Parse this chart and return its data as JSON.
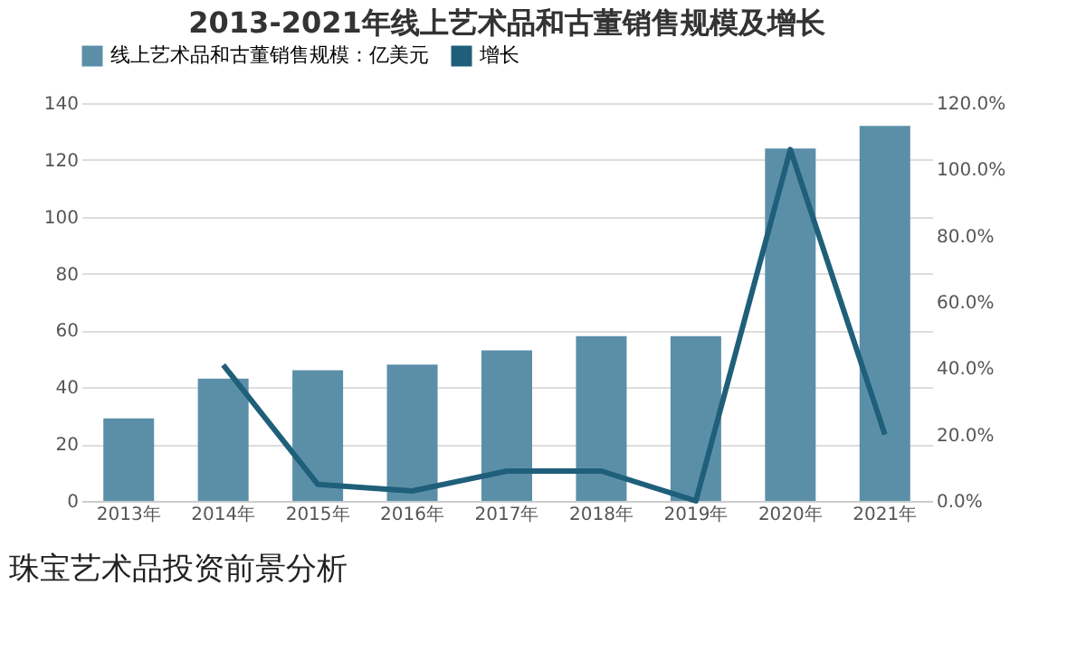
{
  "chart_data": {
    "type": "bar",
    "title": "2013-2021年线上艺术品和古董销售规模及增长",
    "categories": [
      "2013年",
      "2014年",
      "2015年",
      "2016年",
      "2017年",
      "2018年",
      "2019年",
      "2020年",
      "2021年"
    ],
    "series": [
      {
        "name": "线上艺术品和古董销售规模：亿美元",
        "color": "#5b8fa8",
        "values": [
          29,
          43,
          46,
          48,
          53,
          58,
          58,
          124,
          132
        ]
      },
      {
        "name": "增长",
        "type": "line",
        "axis": "y2",
        "color": "#1f5f7a",
        "values": [
          null,
          41,
          5,
          3,
          9,
          9,
          0,
          106,
          20
        ]
      }
    ],
    "ylim": [
      0,
      140
    ],
    "yticks": [
      0,
      20,
      40,
      60,
      80,
      100,
      120,
      140
    ],
    "y2lim": [
      0,
      120
    ],
    "y2ticks": [
      {
        "value": 0,
        "label": "0.0%"
      },
      {
        "value": 20,
        "label": "20.0%"
      },
      {
        "value": 40,
        "label": "40.0%"
      },
      {
        "value": 60,
        "label": "60.0%"
      },
      {
        "value": 80,
        "label": "80.0%"
      },
      {
        "value": 100,
        "label": "100.0%"
      },
      {
        "value": 120,
        "label": "120.0%"
      }
    ],
    "grid": "y",
    "legend": "top",
    "annotations": [
      "珠宝艺术品投资前景分析"
    ]
  }
}
